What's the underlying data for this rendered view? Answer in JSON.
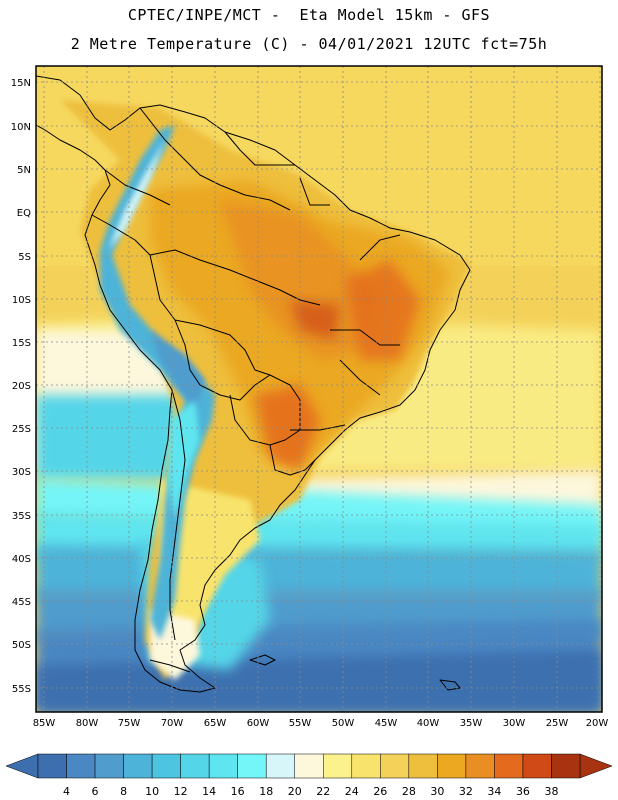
{
  "header": {
    "line1": "CPTEC/INPE/MCT -  Eta Model 15km - GFS",
    "line2": "2 Metre Temperature (C) - 04/01/2021 12UTC fct=75h"
  },
  "axes": {
    "lat_labels": [
      "15N",
      "10N",
      "5N",
      "EQ",
      "5S",
      "10S",
      "15S",
      "20S",
      "25S",
      "30S",
      "35S",
      "40S",
      "45S",
      "50S",
      "55S"
    ],
    "lon_labels": [
      "85W",
      "80W",
      "75W",
      "70W",
      "65W",
      "60W",
      "55W",
      "50W",
      "45W",
      "40W",
      "35W",
      "30W",
      "25W",
      "20W"
    ]
  },
  "colorbar": {
    "labels": [
      "4",
      "6",
      "8",
      "10",
      "12",
      "14",
      "16",
      "18",
      "20",
      "22",
      "24",
      "26",
      "28",
      "30",
      "32",
      "34",
      "36",
      "38"
    ],
    "colors": [
      "#3d6faf",
      "#4a87c3",
      "#4f9ccd",
      "#4eb3d8",
      "#4dc4e0",
      "#55d5e8",
      "#5fe5ef",
      "#74f5f7",
      "#d6f6fa",
      "#fdf7dc",
      "#fbf28e",
      "#f8e46c",
      "#f4d25a",
      "#eebf3d",
      "#eba820",
      "#e88e24",
      "#e46b1d",
      "#cf4a16",
      "#a83310"
    ],
    "low_color": "#3d6faf",
    "high_color": "#a83310"
  }
}
